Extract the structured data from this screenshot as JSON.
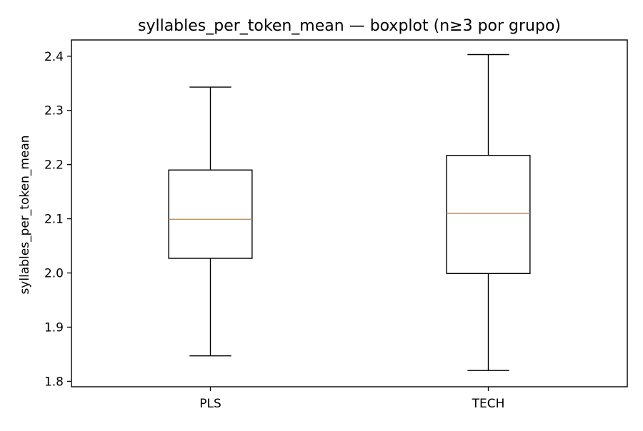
{
  "chart_data": {
    "type": "boxplot",
    "title": "syllables_per_token_mean — boxplot (n≥3 por grupo)",
    "xlabel": "",
    "ylabel": "syllables_per_token_mean",
    "ylim": [
      1.79,
      2.43
    ],
    "yticks": [
      "1.8",
      "1.9",
      "2.0",
      "2.1",
      "2.2",
      "2.3",
      "2.4"
    ],
    "grid": false,
    "legend": "none",
    "categories": [
      "PLS",
      "TECH"
    ],
    "boxes": [
      {
        "category": "PLS",
        "whisker_low": 1.847,
        "q1": 2.027,
        "median": 2.099,
        "q3": 2.19,
        "whisker_high": 2.343
      },
      {
        "category": "TECH",
        "whisker_low": 1.82,
        "q1": 1.999,
        "median": 2.11,
        "q3": 2.217,
        "whisker_high": 2.403
      }
    ],
    "colors": {
      "box": "#000000",
      "median": "#ff7f0e",
      "axis": "#000000"
    }
  }
}
